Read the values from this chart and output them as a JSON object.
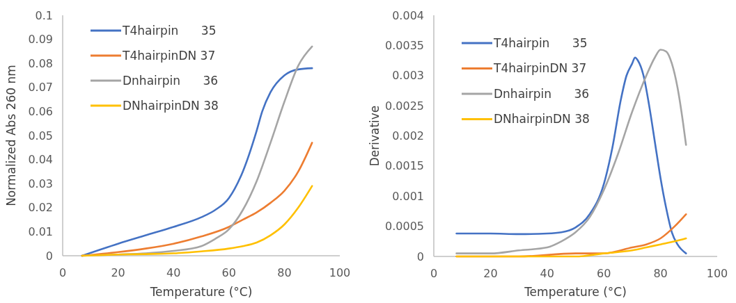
{
  "chart_data": [
    {
      "type": "line",
      "xlabel": "Temperature (°C)",
      "ylabel": "Normalized Abs 260 nm",
      "xlim": [
        0,
        100
      ],
      "xticks": [
        0,
        20,
        40,
        60,
        80,
        100
      ],
      "ylim": [
        0,
        0.1
      ],
      "yticks": [
        0,
        0.01,
        0.02,
        0.03,
        0.04,
        0.05,
        0.06,
        0.07,
        0.08,
        0.09,
        0.1
      ],
      "grid": false,
      "legend": "top left",
      "marker": "none",
      "line_style": "solid",
      "series": [
        {
          "name": "T4hairpin      35",
          "color": "#4472c4",
          "x": [
            7,
            20,
            30,
            40,
            50,
            55,
            60,
            65,
            70,
            72,
            75,
            80,
            85,
            90
          ],
          "values": [
            0,
            0.005,
            0.0085,
            0.012,
            0.016,
            0.019,
            0.024,
            0.035,
            0.052,
            0.06,
            0.068,
            0.075,
            0.0775,
            0.078
          ]
        },
        {
          "name": "T4hairpinDN 37",
          "color": "#ed7d31",
          "x": [
            7,
            20,
            30,
            40,
            50,
            60,
            65,
            70,
            75,
            80,
            85,
            90
          ],
          "values": [
            0,
            0.0015,
            0.003,
            0.005,
            0.008,
            0.012,
            0.015,
            0.018,
            0.022,
            0.027,
            0.035,
            0.047
          ]
        },
        {
          "name": "Dnhairpin      36",
          "color": "#a5a5a5",
          "x": [
            7,
            20,
            30,
            40,
            50,
            55,
            60,
            65,
            70,
            75,
            80,
            85,
            90
          ],
          "values": [
            0,
            0.0005,
            0.001,
            0.002,
            0.004,
            0.007,
            0.011,
            0.019,
            0.031,
            0.047,
            0.064,
            0.079,
            0.087
          ]
        },
        {
          "name": "DNhairpinDN 38",
          "color": "#ffc000",
          "x": [
            7,
            20,
            30,
            40,
            50,
            60,
            65,
            70,
            75,
            80,
            85,
            90
          ],
          "values": [
            0,
            0.0005,
            0.0007,
            0.001,
            0.0018,
            0.003,
            0.004,
            0.0055,
            0.0085,
            0.013,
            0.02,
            0.029
          ]
        }
      ]
    },
    {
      "type": "line",
      "xlabel": "Temperature (°C)",
      "ylabel": "Derivative",
      "xlim": [
        0,
        100
      ],
      "xticks": [
        0,
        20,
        40,
        60,
        80,
        100
      ],
      "ylim": [
        0,
        0.004
      ],
      "yticks": [
        0,
        0.0005,
        0.001,
        0.0015,
        0.002,
        0.0025,
        0.003,
        0.0035,
        0.004
      ],
      "grid": false,
      "legend": "top left",
      "marker": "none",
      "line_style": "solid",
      "series": [
        {
          "name": "T4hairpin      35",
          "color": "#4472c4",
          "x": [
            8,
            20,
            30,
            40,
            45,
            50,
            55,
            60,
            63,
            66,
            68,
            70,
            71,
            72,
            74,
            76,
            78,
            80,
            82,
            84,
            86,
            89
          ],
          "values": [
            0.00038,
            0.00038,
            0.00037,
            0.00038,
            0.0004,
            0.00048,
            0.0007,
            0.0012,
            0.0018,
            0.0026,
            0.003,
            0.0032,
            0.0033,
            0.00325,
            0.003,
            0.0025,
            0.0019,
            0.0013,
            0.0008,
            0.0004,
            0.0002,
            5e-05
          ]
        },
        {
          "name": "T4hairpinDN 37",
          "color": "#ed7d31",
          "x": [
            8,
            30,
            50,
            60,
            70,
            75,
            80,
            85,
            89
          ],
          "values": [
            0,
            0,
            5e-05,
            5e-05,
            0.00015,
            0.0002,
            0.0003,
            0.0005,
            0.0007
          ]
        },
        {
          "name": "Dnhairpin      36",
          "color": "#a5a5a5",
          "x": [
            8,
            20,
            30,
            40,
            45,
            50,
            55,
            60,
            65,
            70,
            75,
            78,
            80,
            82,
            84,
            86,
            88,
            89
          ],
          "values": [
            5e-05,
            5e-05,
            0.0001,
            0.00015,
            0.00025,
            0.0004,
            0.00065,
            0.0011,
            0.0017,
            0.0024,
            0.003,
            0.0033,
            0.00343,
            0.0034,
            0.0032,
            0.0028,
            0.0022,
            0.00185
          ]
        },
        {
          "name": "DNhairpinDN 38",
          "color": "#ffc000",
          "x": [
            8,
            30,
            50,
            60,
            70,
            75,
            80,
            85,
            89
          ],
          "values": [
            0,
            0,
            0,
            5e-05,
            0.0001,
            0.00015,
            0.0002,
            0.00025,
            0.0003
          ]
        }
      ]
    }
  ]
}
